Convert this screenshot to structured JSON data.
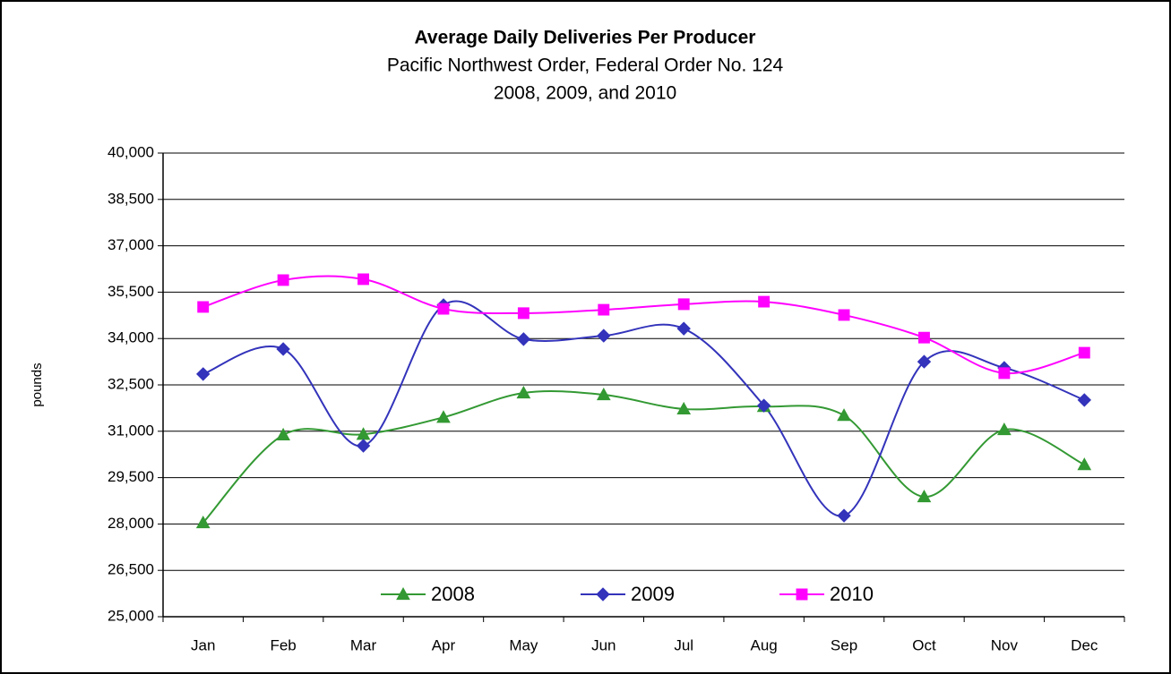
{
  "chart_data": {
    "type": "line",
    "title": "Average Daily Deliveries Per Producer",
    "subtitle": [
      "Pacific Northwest Order, Federal Order No. 124",
      "2008, 2009, and 2010"
    ],
    "ylabel": "pounds",
    "categories": [
      "Jan",
      "Feb",
      "Mar",
      "Apr",
      "May",
      "Jun",
      "Jul",
      "Aug",
      "Sep",
      "Oct",
      "Nov",
      "Dec"
    ],
    "series": [
      {
        "name": "2008",
        "color": "#339933",
        "marker": "triangle",
        "values": [
          28040,
          30880,
          30900,
          31450,
          32240,
          32180,
          31720,
          31800,
          31510,
          28880,
          31050,
          29920
        ]
      },
      {
        "name": "2009",
        "color": "#3333bb",
        "marker": "diamond",
        "values": [
          32850,
          33660,
          30530,
          35080,
          33980,
          34090,
          34320,
          31830,
          28270,
          33250,
          33050,
          32010
        ]
      },
      {
        "name": "2010",
        "color": "#ff00ff",
        "marker": "square",
        "values": [
          35020,
          35890,
          35920,
          34960,
          34820,
          34930,
          35110,
          35190,
          34760,
          34030,
          32880,
          33540
        ]
      }
    ],
    "ylim": [
      25000,
      40000
    ],
    "yticks": [
      {
        "value": 25000,
        "label": "25,000"
      },
      {
        "value": 26500,
        "label": "26,500"
      },
      {
        "value": 28000,
        "label": "28,000"
      },
      {
        "value": 29500,
        "label": "29,500"
      },
      {
        "value": 31000,
        "label": "31,000"
      },
      {
        "value": 32500,
        "label": "32,500"
      },
      {
        "value": 34000,
        "label": "34,000"
      },
      {
        "value": 35500,
        "label": "35,500"
      },
      {
        "value": 37000,
        "label": "37,000"
      },
      {
        "value": 38500,
        "label": "38,500"
      },
      {
        "value": 40000,
        "label": "40,000"
      }
    ],
    "grid": true,
    "smooth": true,
    "legend": "bottom"
  }
}
